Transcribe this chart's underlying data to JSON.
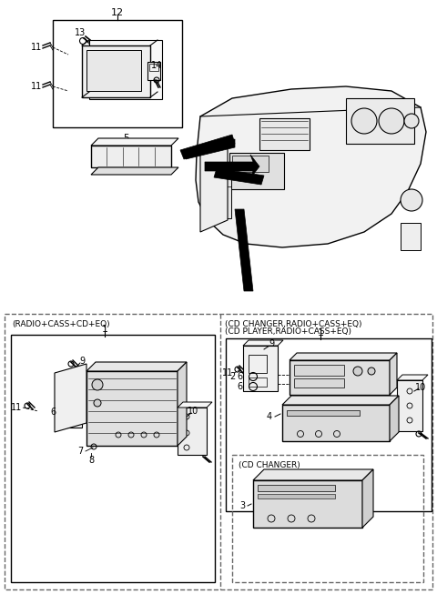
{
  "bg_color": "#ffffff",
  "lc": "#000000",
  "dc": "#666666",
  "fig_width": 4.8,
  "fig_height": 6.53,
  "dpi": 100,
  "labels": {
    "p12": "12",
    "p13": "13",
    "p14": "14",
    "p5": "5",
    "p11": "11",
    "p1": "1",
    "p2": "2",
    "p3": "3",
    "p4": "4",
    "p6": "6",
    "p7": "7",
    "p8": "8",
    "p9": "9",
    "p10": "10",
    "left_panel": "(RADIO+CASS+CD+EQ)",
    "right_panel1": "(CD CHANGER,RADIO+CASS+EQ)",
    "right_panel2": "(CD PLAYER,RADIO+CASS+EQ)",
    "cd_changer": "(CD CHANGER)"
  }
}
